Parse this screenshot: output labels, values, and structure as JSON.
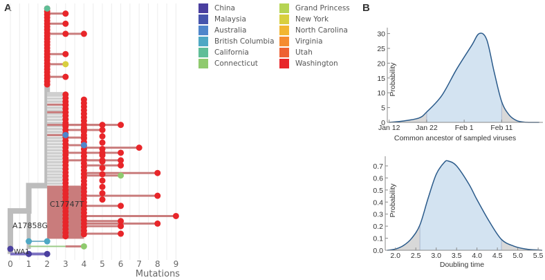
{
  "panels": {
    "a_label": "A",
    "b_label": "B"
  },
  "chart_data": [
    {
      "type": "scatter",
      "subtype": "mutation-tree",
      "title": "",
      "xlabel": "Mutations",
      "xlim": [
        0,
        9
      ],
      "x_ticks": [
        "0",
        "1",
        "2",
        "3",
        "4",
        "5",
        "6",
        "7",
        "8",
        "9"
      ],
      "annotations": [
        "A17858G",
        "C17747T",
        "WA1"
      ],
      "legend": {
        "placement": "top-right",
        "entries": [
          {
            "label": "China",
            "color": "#4a3f9f"
          },
          {
            "label": "Malaysia",
            "color": "#4655ad"
          },
          {
            "label": "Australia",
            "color": "#4f86cb"
          },
          {
            "label": "British Columbia",
            "color": "#4ea8c4"
          },
          {
            "label": "California",
            "color": "#5fbe97"
          },
          {
            "label": "Connecticut",
            "color": "#8fca6e"
          },
          {
            "label": "Grand Princess",
            "color": "#b6d453"
          },
          {
            "label": "New York",
            "color": "#d8cf3f"
          },
          {
            "label": "North Carolina",
            "color": "#f2b632"
          },
          {
            "label": "Virginia",
            "color": "#f58b31"
          },
          {
            "label": "Utah",
            "color": "#ee6133"
          },
          {
            "label": "Washington",
            "color": "#e8262a"
          }
        ]
      },
      "colors": {
        "branch": "#bdbdbd",
        "red_branch": "#c97c7c",
        "china_branch": "#7a6fc0"
      },
      "tips": [
        {
          "mut": 2,
          "y": 0.02,
          "color": "#5fbe97"
        },
        {
          "mut": 3,
          "y": 0.04,
          "color": "#e8262a"
        },
        {
          "mut": 3,
          "y": 0.08,
          "color": "#e8262a"
        },
        {
          "mut": 3,
          "y": 0.12,
          "color": "#e8262a"
        },
        {
          "mut": 4,
          "y": 0.12,
          "color": "#e8262a"
        },
        {
          "mut": 3,
          "y": 0.2,
          "color": "#e8262a"
        },
        {
          "mut": 3,
          "y": 0.24,
          "color": "#d8cf3f"
        },
        {
          "mut": 3,
          "y": 0.29,
          "color": "#e8262a"
        },
        {
          "mut": 3,
          "y": 0.4,
          "color": "#e8262a"
        },
        {
          "mut": 3,
          "y": 0.43,
          "color": "#e8262a"
        },
        {
          "mut": 3,
          "y": 0.48,
          "color": "#e8262a"
        },
        {
          "mut": 3,
          "y": 0.52,
          "color": "#4f86cb"
        },
        {
          "mut": 4,
          "y": 0.48,
          "color": "#e8262a"
        },
        {
          "mut": 4,
          "y": 0.5,
          "color": "#e8262a"
        },
        {
          "mut": 4,
          "y": 0.53,
          "color": "#e8262a"
        },
        {
          "mut": 4,
          "y": 0.56,
          "color": "#4f86cb"
        },
        {
          "mut": 5,
          "y": 0.48,
          "color": "#e8262a"
        },
        {
          "mut": 5,
          "y": 0.5,
          "color": "#e8262a"
        },
        {
          "mut": 6,
          "y": 0.48,
          "color": "#e8262a"
        },
        {
          "mut": 7,
          "y": 0.57,
          "color": "#e8262a"
        },
        {
          "mut": 5,
          "y": 0.59,
          "color": "#e8262a"
        },
        {
          "mut": 5,
          "y": 0.62,
          "color": "#e8262a"
        },
        {
          "mut": 6,
          "y": 0.59,
          "color": "#e8262a"
        },
        {
          "mut": 6,
          "y": 0.62,
          "color": "#e8262a"
        },
        {
          "mut": 6,
          "y": 0.64,
          "color": "#e8262a"
        },
        {
          "mut": 8,
          "y": 0.67,
          "color": "#e8262a"
        },
        {
          "mut": 6,
          "y": 0.68,
          "color": "#8fca6e"
        },
        {
          "mut": 8,
          "y": 0.76,
          "color": "#e8262a"
        },
        {
          "mut": 9,
          "y": 0.84,
          "color": "#e8262a"
        },
        {
          "mut": 8,
          "y": 0.87,
          "color": "#e8262a"
        },
        {
          "mut": 6,
          "y": 0.8,
          "color": "#e8262a"
        },
        {
          "mut": 6,
          "y": 0.86,
          "color": "#e8262a"
        },
        {
          "mut": 6,
          "y": 0.88,
          "color": "#e8262a"
        },
        {
          "mut": 6,
          "y": 0.91,
          "color": "#e8262a"
        },
        {
          "mut": 4,
          "y": 0.96,
          "color": "#8fca6e"
        },
        {
          "mut": 2,
          "y": 0.94,
          "color": "#4ea8c4"
        },
        {
          "mut": 2,
          "y": 0.99,
          "color": "#4a3f9f"
        }
      ]
    },
    {
      "type": "area",
      "title": "",
      "xlabel": "Common ancestor of sampled viruses",
      "ylabel": "Probability",
      "x_ticks": [
        "Jan 12",
        "Jan 22",
        "Feb 1",
        "Feb 11"
      ],
      "y_ticks": [
        "0",
        "5",
        "10",
        "15",
        "20",
        "25",
        "30"
      ],
      "ylim": [
        0,
        32
      ],
      "xlim_days_from_jan12": [
        0,
        40
      ],
      "credible_interval_days": [
        10,
        30
      ],
      "series": [
        {
          "name": "density",
          "x": [
            0,
            4,
            8,
            10,
            14,
            18,
            22,
            24,
            26,
            28,
            30,
            32,
            34,
            36,
            38,
            40
          ],
          "y": [
            0,
            0.5,
            1.5,
            3.5,
            9,
            18,
            26,
            30,
            28,
            17,
            7,
            2.5,
            0.6,
            0.1,
            0,
            0
          ]
        }
      ],
      "colors": {
        "line": "#2a5a8a",
        "fill": "#d3e3f1",
        "tail": "#d8d8d8"
      }
    },
    {
      "type": "area",
      "title": "",
      "xlabel": "Doubling time",
      "ylabel": "Probability",
      "x_ticks": [
        "2.0",
        "2.5",
        "3.0",
        "3.5",
        "4.0",
        "4.5",
        "5.0",
        "5.5"
      ],
      "y_ticks": [
        "0.0",
        "0.1",
        "0.2",
        "0.3",
        "0.4",
        "0.5",
        "0.6",
        "0.7"
      ],
      "xlim": [
        1.75,
        5.6
      ],
      "ylim": [
        0,
        0.78
      ],
      "credible_interval": [
        2.6,
        4.6
      ],
      "series": [
        {
          "name": "density",
          "x": [
            1.8,
            2.0,
            2.2,
            2.4,
            2.6,
            2.8,
            3.0,
            3.2,
            3.3,
            3.5,
            3.8,
            4.0,
            4.3,
            4.6,
            4.9,
            5.2,
            5.5,
            5.6
          ],
          "y": [
            0,
            0.01,
            0.04,
            0.1,
            0.21,
            0.43,
            0.63,
            0.73,
            0.74,
            0.7,
            0.55,
            0.42,
            0.24,
            0.09,
            0.035,
            0.01,
            0.002,
            0
          ]
        }
      ],
      "colors": {
        "line": "#2a5a8a",
        "fill": "#d3e3f1",
        "tail": "#d8d8d8"
      }
    }
  ]
}
